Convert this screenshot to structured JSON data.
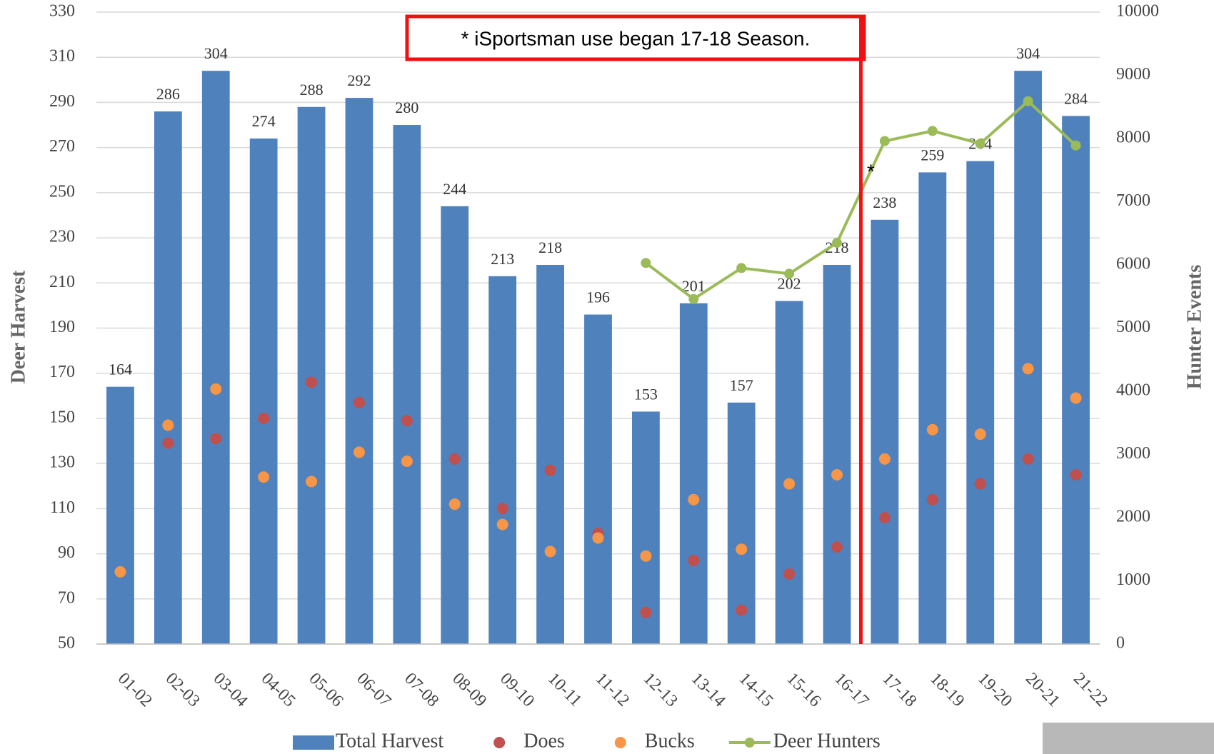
{
  "chart_data": {
    "type": "bar",
    "categories": [
      "01-02",
      "02-03",
      "03-04",
      "04-05",
      "05-06",
      "06-07",
      "07-08",
      "08-09",
      "09-10",
      "10-11",
      "11-12",
      "12-13",
      "13-14",
      "14-15",
      "15-16",
      "16-17",
      "17-18",
      "18-19",
      "19-20",
      "20-21",
      "21-22"
    ],
    "series": [
      {
        "name": "Total Harvest",
        "type": "bar",
        "color": "#4f81bd",
        "values": [
          164,
          286,
          304,
          274,
          288,
          292,
          280,
          244,
          213,
          218,
          196,
          153,
          201,
          157,
          202,
          218,
          238,
          259,
          264,
          304,
          284
        ]
      },
      {
        "name": "Does",
        "type": "scatter",
        "color": "#c0504d",
        "values": [
          null,
          139,
          141,
          150,
          166,
          157,
          149,
          132,
          110,
          127,
          99,
          64,
          87,
          65,
          81,
          93,
          106,
          114,
          121,
          132,
          125
        ]
      },
      {
        "name": "Bucks",
        "type": "scatter",
        "color": "#f79646",
        "values": [
          82,
          147,
          163,
          124,
          122,
          135,
          131,
          112,
          103,
          91,
          97,
          89,
          114,
          92,
          121,
          125,
          132,
          145,
          143,
          172,
          159
        ]
      },
      {
        "name": "Deer Hunters",
        "type": "line",
        "axis": "y2",
        "color": "#9bbb59",
        "values": [
          null,
          null,
          null,
          null,
          null,
          null,
          null,
          null,
          null,
          null,
          null,
          6030,
          5460,
          5950,
          5860,
          6350,
          7960,
          8120,
          7920,
          8590,
          7890
        ]
      }
    ],
    "ylabel": "Deer Harvest",
    "y2label": "Hunter Events",
    "ylim": [
      50,
      330
    ],
    "yticks": [
      50,
      70,
      90,
      110,
      130,
      150,
      170,
      190,
      210,
      230,
      250,
      270,
      290,
      310,
      330
    ],
    "y2lim": [
      0,
      10000
    ],
    "y2ticks": [
      0,
      1000,
      2000,
      3000,
      4000,
      5000,
      6000,
      7000,
      8000,
      9000,
      10000
    ],
    "grid": true,
    "legend": "bottom",
    "annotation": "* iSportsman use began 17-18 Season.",
    "marker_note": "*"
  }
}
